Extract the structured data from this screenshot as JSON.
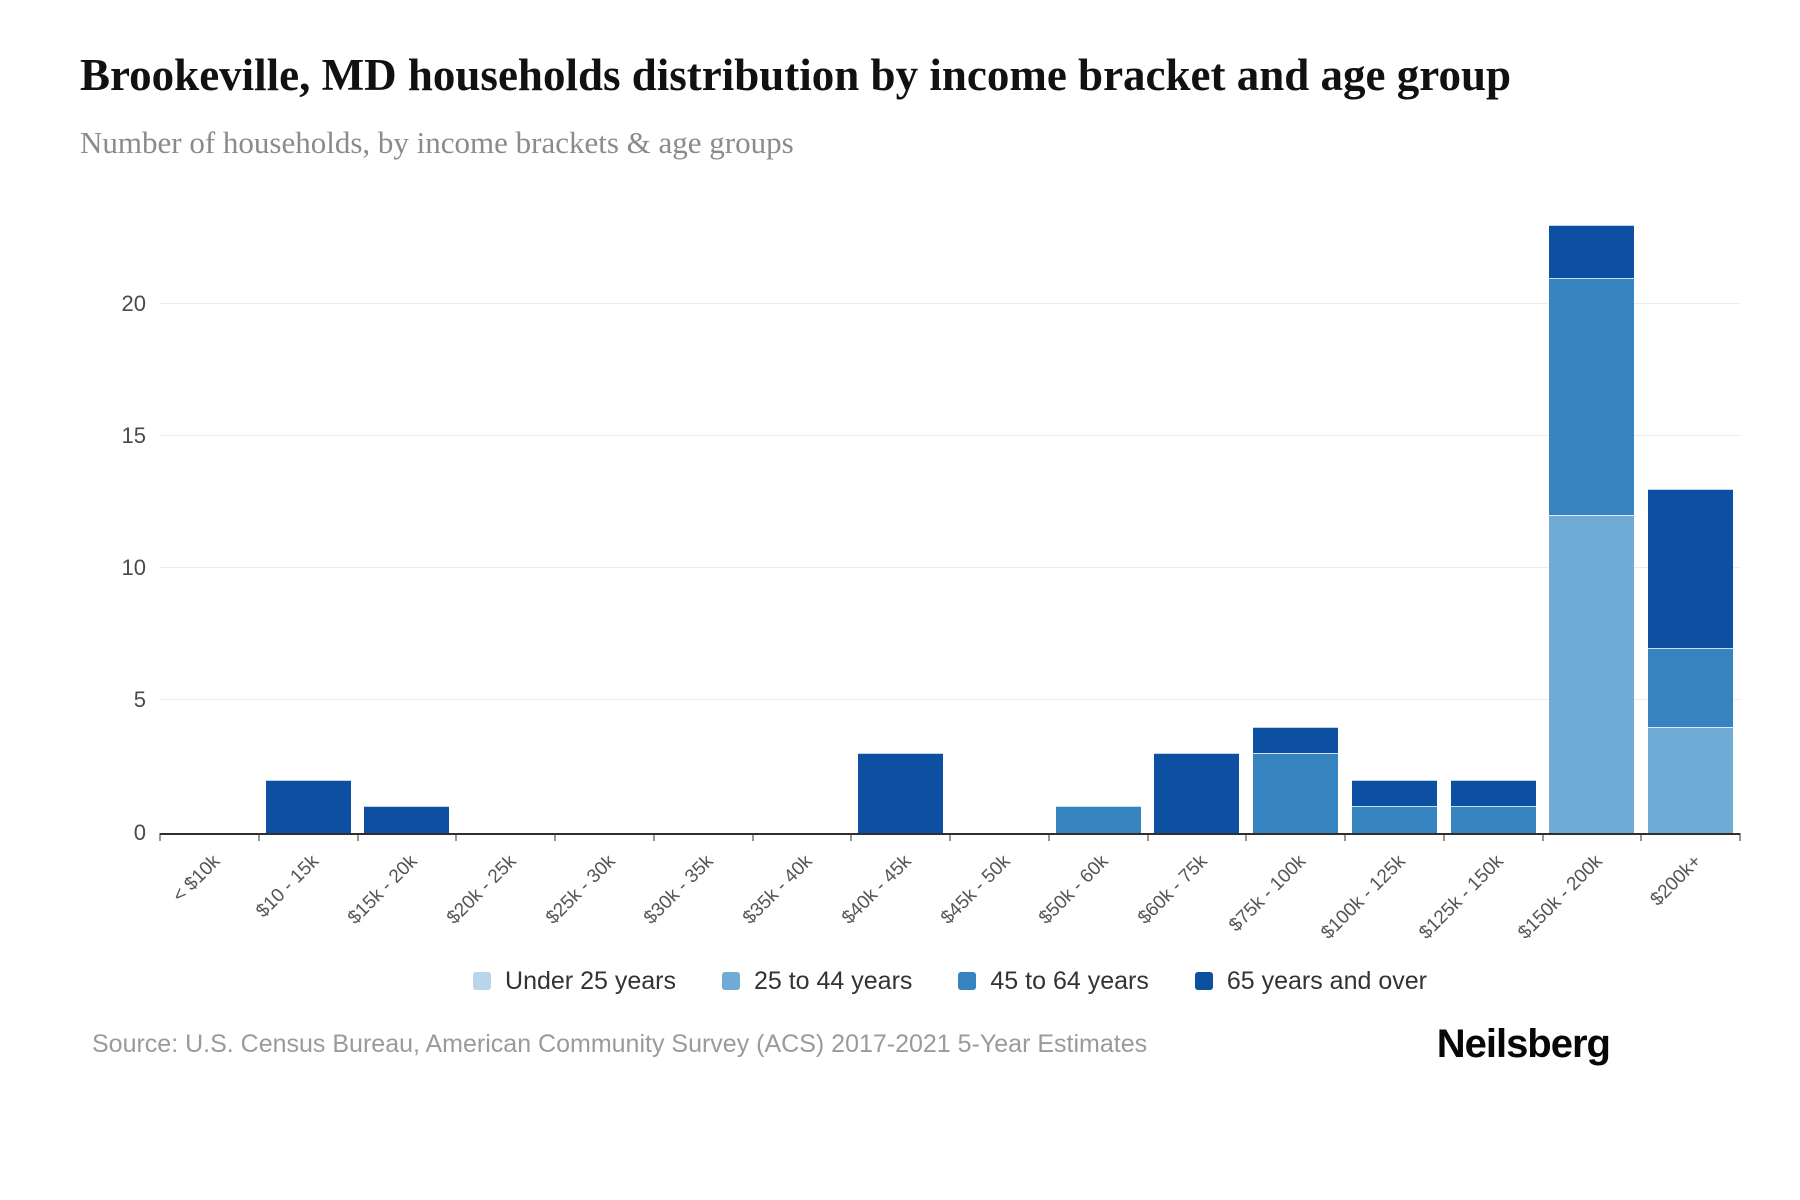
{
  "header": {
    "title": "Brookeville, MD households distribution by income bracket and age group",
    "subtitle": "Number of households, by income brackets & age groups"
  },
  "chart_data": {
    "type": "bar",
    "stacked": true,
    "title": "Brookeville, MD households distribution by income bracket and age group",
    "xlabel": "",
    "ylabel": "",
    "categories": [
      "< $10k",
      "$10 - 15k",
      "$15k - 20k",
      "$20k - 25k",
      "$25k - 30k",
      "$30k - 35k",
      "$35k - 40k",
      "$40k - 45k",
      "$45k - 50k",
      "$50k - 60k",
      "$60k - 75k",
      "$75k - 100k",
      "$100k - 125k",
      "$125k - 150k",
      "$150k - 200k",
      "$200k+"
    ],
    "series": [
      {
        "name": "Under 25 years",
        "color": "#b8d6ea",
        "values": [
          0,
          0,
          0,
          0,
          0,
          0,
          0,
          0,
          0,
          0,
          0,
          0,
          0,
          0,
          0,
          0
        ]
      },
      {
        "name": "25 to 44 years",
        "color": "#6fabd4",
        "values": [
          0,
          0,
          0,
          0,
          0,
          0,
          0,
          0,
          0,
          0,
          0,
          0,
          0,
          0,
          12,
          4
        ]
      },
      {
        "name": "45 to 64 years",
        "color": "#3583bf",
        "values": [
          0,
          0,
          0,
          0,
          0,
          0,
          0,
          0,
          0,
          1,
          0,
          3,
          1,
          1,
          9,
          3
        ]
      },
      {
        "name": "65 years and over",
        "color": "#0d50a1",
        "values": [
          0,
          2,
          1,
          0,
          0,
          0,
          0,
          3,
          0,
          0,
          3,
          1,
          1,
          1,
          2,
          6
        ]
      }
    ],
    "totals": [
      0,
      2,
      1,
      0,
      0,
      0,
      0,
      3,
      0,
      1,
      3,
      4,
      2,
      2,
      23,
      13
    ],
    "yticks": [
      0,
      5,
      10,
      15,
      20
    ],
    "ylim": [
      0,
      24.3
    ],
    "grid": true,
    "legend_position": "bottom",
    "gridline_color": "#ececec",
    "axis_color": "#2f2f2f"
  },
  "footer": {
    "source": "Source: U.S. Census Bureau, American Community Survey (ACS) 2017-2021 5-Year Estimates",
    "brand": "Neilsberg"
  }
}
